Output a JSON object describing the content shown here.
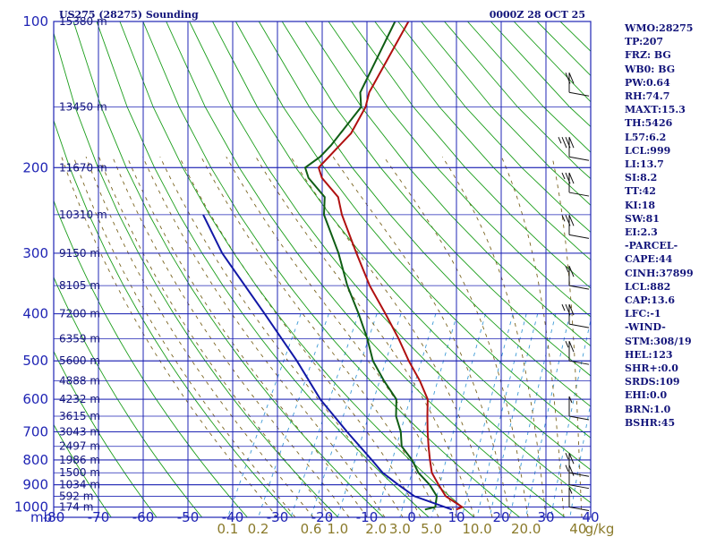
{
  "header": {
    "station": "US275 (28275) Sounding",
    "time": "0000Z 28 OCT 25"
  },
  "stats": [
    "WMO:28275",
    "TP:207",
    "FRZ: BG",
    "WB0: BG",
    "PW:0.64",
    "RH:74.7",
    "MAXT:15.3",
    "TH:5426",
    "L57:6.2",
    "LCL:999",
    "LI:13.7",
    "SI:8.2",
    "TT:42",
    "KI:18",
    "SW:81",
    "EI:2.3",
    "-PARCEL-",
    "CAPE:44",
    "CINH:37899",
    "LCL:882",
    "CAP:13.6",
    "LFC:-1",
    "-WIND-",
    "STM:308/19",
    "HEL:123",
    "SHR+:0.0",
    "SRDS:109",
    "EHI:0.0",
    "BRN:1.0",
    "BSHR:45"
  ],
  "chart_data": {
    "type": "line",
    "title": "US275 (28275) Sounding",
    "pressure_unit": "mb",
    "pressure_ticks": [
      100,
      200,
      300,
      400,
      500,
      600,
      700,
      800,
      900,
      1000
    ],
    "pressure_ticks_labeled": [
      "100",
      "200",
      "300",
      "400",
      "500",
      "600",
      "700",
      "800",
      "900",
      "1000"
    ],
    "height_levels": [
      {
        "p": 100,
        "label": "15380 m"
      },
      {
        "p": 150,
        "label": "13450 m"
      },
      {
        "p": 200,
        "label": "11670 m"
      },
      {
        "p": 250,
        "label": "10310 m"
      },
      {
        "p": 300,
        "label": "9150 m"
      },
      {
        "p": 350,
        "label": "8105 m"
      },
      {
        "p": 400,
        "label": "7200 m"
      },
      {
        "p": 450,
        "label": "6359 m"
      },
      {
        "p": 500,
        "label": "5600 m"
      },
      {
        "p": 550,
        "label": "4888 m"
      },
      {
        "p": 600,
        "label": "4232 m"
      },
      {
        "p": 650,
        "label": "3615 m"
      },
      {
        "p": 700,
        "label": "3043 m"
      },
      {
        "p": 750,
        "label": "2497 m"
      },
      {
        "p": 800,
        "label": "1986 m"
      },
      {
        "p": 850,
        "label": "1500 m"
      },
      {
        "p": 900,
        "label": "1034 m"
      },
      {
        "p": 950,
        "label": "592 m"
      },
      {
        "p": 1000,
        "label": "174 m"
      }
    ],
    "temp_ticks": [
      -80,
      -70,
      -60,
      -50,
      -40,
      -30,
      -20,
      -10,
      0,
      10,
      20,
      30,
      40
    ],
    "temp_tick_labels": [
      "-80",
      "-70",
      "-60",
      "-50",
      "-40",
      "-30",
      "-20",
      "-10",
      "0",
      "10",
      "20",
      "30",
      "40"
    ],
    "mixing_ratio_labels": [
      {
        "g": 0.1,
        "label": "0.1"
      },
      {
        "g": 0.2,
        "label": "0.2"
      },
      {
        "g": 0.6,
        "label": "0.6"
      },
      {
        "g": 1.0,
        "label": "1.0"
      },
      {
        "g": 2.0,
        "label": "2.0"
      },
      {
        "g": 3.0,
        "label": "3.0"
      },
      {
        "g": 5.0,
        "label": "5.0"
      },
      {
        "g": 10.0,
        "label": "10.0"
      },
      {
        "g": 20.0,
        "label": "20.0"
      },
      {
        "g": 40,
        "label": "40"
      }
    ],
    "mixing_ratio_unit": "g/kg",
    "xlim": [
      -80,
      40
    ],
    "plim": [
      100,
      1050
    ],
    "skew_deg_per_log10": 60,
    "series": [
      {
        "key": "temperature",
        "color": "#b01010",
        "points": [
          [
            1012,
            9
          ],
          [
            1000,
            10
          ],
          [
            950,
            5
          ],
          [
            900,
            2
          ],
          [
            850,
            -1
          ],
          [
            800,
            -3
          ],
          [
            750,
            -5
          ],
          [
            700,
            -7
          ],
          [
            650,
            -9
          ],
          [
            600,
            -11
          ],
          [
            550,
            -15
          ],
          [
            500,
            -20
          ],
          [
            450,
            -25
          ],
          [
            400,
            -31
          ],
          [
            350,
            -38
          ],
          [
            300,
            -45
          ],
          [
            250,
            -53
          ],
          [
            230,
            -56
          ],
          [
            210,
            -62
          ],
          [
            200,
            -64
          ],
          [
            170,
            -61
          ],
          [
            150,
            -61
          ],
          [
            140,
            -62
          ],
          [
            100,
            -62
          ]
        ]
      },
      {
        "key": "dewpoint",
        "color": "#0f5d14",
        "points": [
          [
            1012,
            2
          ],
          [
            1000,
            4
          ],
          [
            950,
            3
          ],
          [
            900,
            0
          ],
          [
            850,
            -4
          ],
          [
            800,
            -7
          ],
          [
            750,
            -11
          ],
          [
            700,
            -13
          ],
          [
            650,
            -16
          ],
          [
            600,
            -18
          ],
          [
            550,
            -23
          ],
          [
            500,
            -28
          ],
          [
            450,
            -32
          ],
          [
            400,
            -37
          ],
          [
            350,
            -43
          ],
          [
            300,
            -49
          ],
          [
            250,
            -57
          ],
          [
            230,
            -59
          ],
          [
            210,
            -65
          ],
          [
            200,
            -67
          ],
          [
            190,
            -65
          ],
          [
            180,
            -64
          ],
          [
            150,
            -62
          ],
          [
            140,
            -64
          ],
          [
            100,
            -65
          ]
        ]
      },
      {
        "key": "parcel",
        "color": "#1218a6",
        "points": [
          [
            1012,
            8
          ],
          [
            950,
            -2
          ],
          [
            900,
            -7
          ],
          [
            850,
            -12
          ],
          [
            800,
            -16
          ],
          [
            700,
            -25
          ],
          [
            600,
            -35
          ],
          [
            500,
            -45
          ],
          [
            400,
            -58
          ],
          [
            300,
            -75
          ],
          [
            250,
            -84
          ]
        ]
      }
    ],
    "winds": [
      {
        "p": 140,
        "dir": 255,
        "spd": 20
      },
      {
        "p": 190,
        "dir": 255,
        "spd": 35
      },
      {
        "p": 225,
        "dir": 255,
        "spd": 25
      },
      {
        "p": 275,
        "dir": 255,
        "spd": 25
      },
      {
        "p": 350,
        "dir": 255,
        "spd": 15
      },
      {
        "p": 420,
        "dir": 255,
        "spd": 25
      },
      {
        "p": 500,
        "dir": 255,
        "spd": 15
      },
      {
        "p": 650,
        "dir": 255,
        "spd": 5
      },
      {
        "p": 850,
        "dir": 255,
        "spd": 15
      },
      {
        "p": 900,
        "dir": 255,
        "spd": 15
      },
      {
        "p": 1000,
        "dir": 300,
        "spd": 5
      }
    ],
    "colors": {
      "grid": "#1f24b4",
      "dry_adiabat": "#1a9d1a",
      "moist_adiabat": "#7a6420",
      "mixing_ratio": "#3d9ad6",
      "pressure_label": "#1f24b4",
      "wind": "#111111"
    }
  }
}
